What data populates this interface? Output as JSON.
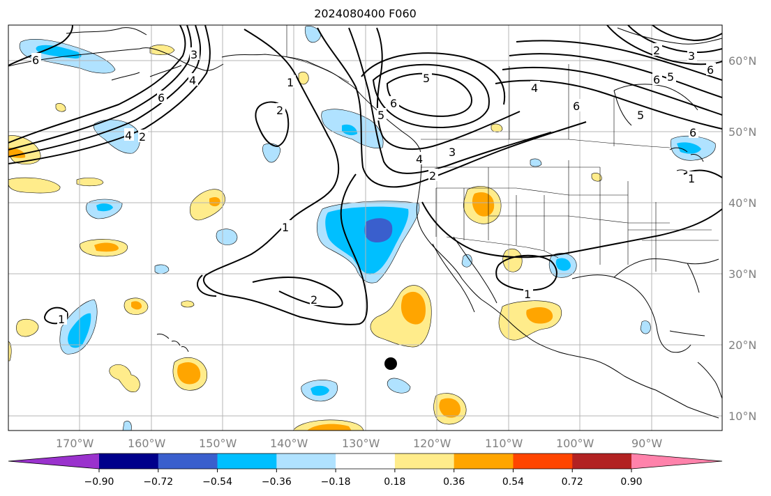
{
  "title": "2024080400 F060",
  "map": {
    "lon_labels": [
      "170°W",
      "160°W",
      "150°W",
      "140°W",
      "130°W",
      "120°W",
      "110°W",
      "100°W",
      "90°W"
    ],
    "lat_labels": [
      "60°N",
      "50°N",
      "40°N",
      "30°N",
      "20°N",
      "10°N"
    ],
    "marker": "storm-center-dot"
  },
  "colorbar": {
    "ticks": [
      "−0.90",
      "−0.72",
      "−0.54",
      "−0.36",
      "−0.18",
      "0.18",
      "0.36",
      "0.54",
      "0.72",
      "0.90"
    ],
    "colors": [
      "#9a32cd",
      "#00008b",
      "#3a5fcd",
      "#00bfff",
      "#b0e2ff",
      "#ffffff",
      "#ffec8b",
      "#ffa500",
      "#ff4500",
      "#b22222",
      "#ff82ab"
    ]
  },
  "palette": {
    "pos_light": "#ffec8b",
    "pos_mid": "#ffa500",
    "neg_light": "#b0e2ff",
    "neg_mid": "#00bfff",
    "neg_dark": "#3a5fcd"
  }
}
